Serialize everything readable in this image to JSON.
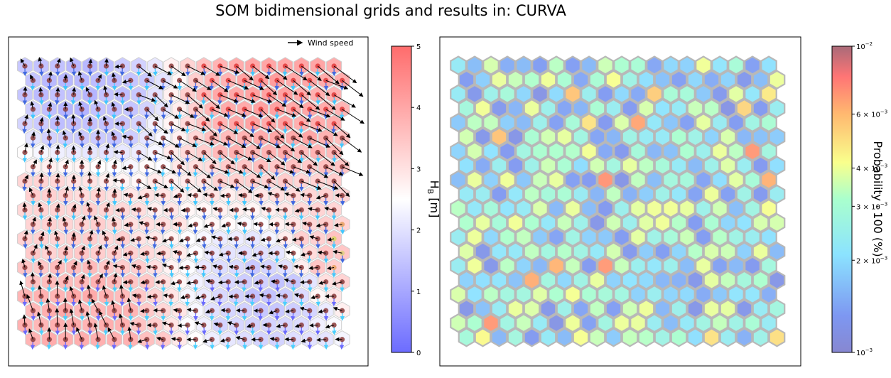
{
  "title": "SOM bidimensional grids and results in: CURVA",
  "chart_data": [
    {
      "type": "heatmap",
      "subtype": "hexagonal-som-grid",
      "grid": {
        "columns": 20,
        "rows": 20,
        "hexagon_orientation": "pointy-top"
      },
      "legend": {
        "label": "Wind speed",
        "placement": "top-right"
      },
      "colorbar": {
        "label": "H",
        "label_subscript": "B",
        "label_unit": "[m]",
        "colormap": "bwr",
        "range": [
          0,
          5
        ],
        "ticks": [
          "0",
          "1",
          "2",
          "3",
          "4",
          "5"
        ]
      },
      "markers": {
        "arrows": "direction and speed of the wind per node",
        "arrow_color": "#000000",
        "wave_direction_arrows": "short downward arrows coloured from blue (small) to cyan",
        "node_dots": "coloured by secondary value, mostly dark red"
      },
      "hs_regions": [
        {
          "area": "upper-right",
          "hs": 4.2
        },
        {
          "area": "upper-left",
          "hs": 1.2
        },
        {
          "area": "middle-left",
          "hs": 3.3
        },
        {
          "area": "lower-left",
          "hs": 4.0
        },
        {
          "area": "lower-right",
          "hs": 1.4
        },
        {
          "area": "right-edge-lower",
          "hs": 3.6
        }
      ],
      "grid_lines": false
    },
    {
      "type": "heatmap",
      "subtype": "hexagonal-som-grid",
      "grid": {
        "columns": 20,
        "rows": 20,
        "hexagon_orientation": "pointy-top"
      },
      "colorbar": {
        "label": "Probability · 100 (%)",
        "colormap": "jet",
        "scale": "log",
        "range": [
          0.001,
          0.01
        ],
        "ticks": [
          "10",
          "2 × 10",
          "3 × 10",
          "4 × 10",
          "6 × 10",
          "10"
        ],
        "tick_exponents": [
          "−3",
          "−3",
          "−3",
          "−3",
          "−3",
          "−2"
        ]
      },
      "typical_probability": 0.0022,
      "grid_lines": false
    }
  ],
  "colors": {
    "hs_low": "#5b5bff",
    "hs_mid": "#ffffff",
    "hs_high": "#ff6b6b",
    "hex_edge_left": "#d9d9d9",
    "hex_edge_right": "#a6a6a6",
    "frame": "#000000"
  }
}
